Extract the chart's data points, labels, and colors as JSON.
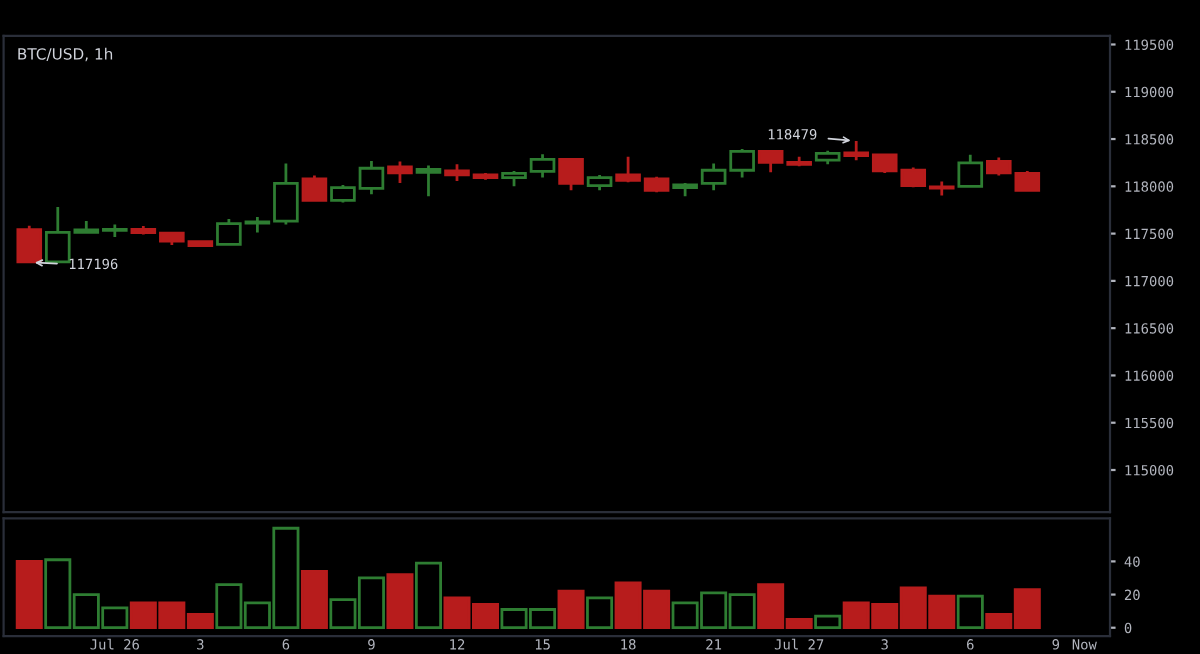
{
  "chart_data": [
    {
      "type": "candlestick",
      "title": "BTC/USD, 1h",
      "categories": [
        null,
        null,
        null,
        null,
        null,
        null,
        null,
        null,
        null,
        null,
        null,
        null,
        null,
        null,
        null,
        null,
        null,
        null,
        null,
        null,
        null,
        null,
        null,
        null,
        null,
        null,
        null,
        null,
        null,
        null,
        null,
        null,
        null,
        null,
        null,
        null,
        null,
        null
      ],
      "ohlc": [
        [
          117542,
          117584,
          117196,
          117200
        ],
        [
          117200,
          117782,
          117200,
          117512
        ],
        [
          117512,
          117633,
          117512,
          117540
        ],
        [
          117535,
          117597,
          117464,
          117545
        ],
        [
          117545,
          117580,
          117490,
          117510
        ],
        [
          117506,
          117506,
          117379,
          117421
        ],
        [
          117415,
          117420,
          117370,
          117372
        ],
        [
          117385,
          117655,
          117380,
          117606
        ],
        [
          117610,
          117676,
          117512,
          117625
        ],
        [
          117633,
          118242,
          117597,
          118030
        ],
        [
          118078,
          118114,
          117852,
          117852
        ],
        [
          117852,
          118015,
          117830,
          117987
        ],
        [
          117979,
          118269,
          117915,
          118191
        ],
        [
          118206,
          118263,
          118036,
          118142
        ],
        [
          118148,
          118220,
          117894,
          118178
        ],
        [
          118163,
          118233,
          118057,
          118121
        ],
        [
          118121,
          118140,
          118070,
          118093
        ],
        [
          118093,
          118163,
          118000,
          118136
        ],
        [
          118157,
          118339,
          118093,
          118284
        ],
        [
          118284,
          118290,
          117958,
          118030
        ],
        [
          118008,
          118121,
          117958,
          118093
        ],
        [
          118121,
          118312,
          118042,
          118064
        ],
        [
          118078,
          118100,
          117937,
          117958
        ],
        [
          117987,
          118036,
          117894,
          118015
        ],
        [
          118030,
          118242,
          117958,
          118170
        ],
        [
          118170,
          118396,
          118093,
          118369
        ],
        [
          118369,
          118369,
          118148,
          118254
        ],
        [
          118254,
          118312,
          118212,
          118233
        ],
        [
          118276,
          118375,
          118233,
          118348
        ],
        [
          118354,
          118479,
          118276,
          118326
        ],
        [
          118333,
          118333,
          118142,
          118163
        ],
        [
          118170,
          118199,
          117990,
          118008
        ],
        [
          117994,
          118050,
          117902,
          117980
        ],
        [
          118000,
          118333,
          118000,
          118248
        ],
        [
          118263,
          118304,
          118114,
          118142
        ],
        [
          118136,
          118163,
          117958,
          117958
        ],
        null,
        null
      ],
      "colors": [
        "#b71c1c",
        "#2e7d32",
        "#2e7d32",
        "#2e7d32",
        "#b71c1c",
        "#b71c1c",
        "#b71c1c",
        "#2e7d32",
        "#2e7d32",
        "#2e7d32",
        "#b71c1c",
        "#2e7d32",
        "#2e7d32",
        "#b71c1c",
        "#2e7d32",
        "#b71c1c",
        "#b71c1c",
        "#2e7d32",
        "#2e7d32",
        "#b71c1c",
        "#2e7d32",
        "#b71c1c",
        "#b71c1c",
        "#2e7d32",
        "#2e7d32",
        "#2e7d32",
        "#b71c1c",
        "#b71c1c",
        "#2e7d32",
        "#b71c1c",
        "#b71c1c",
        "#b71c1c",
        "#b71c1c",
        "#2e7d32",
        "#b71c1c",
        "#b71c1c",
        null,
        null
      ],
      "ylim": [
        114555,
        119590
      ],
      "yticks": [
        115000,
        115500,
        116000,
        116500,
        117000,
        117500,
        118000,
        118500,
        119000,
        119500
      ],
      "tick_labels": "y",
      "grid": false,
      "annotations": [
        "117196",
        "118479"
      ]
    },
    {
      "type": "bar",
      "categories": [
        null,
        null,
        null,
        "Jul 26",
        null,
        null,
        "3",
        null,
        null,
        "6",
        null,
        null,
        "9",
        null,
        null,
        "12",
        null,
        null,
        "15",
        null,
        null,
        "18",
        null,
        null,
        "21",
        null,
        null,
        "Jul 27",
        null,
        null,
        "3",
        null,
        null,
        "6",
        null,
        null,
        "9",
        "Now"
      ],
      "values": [
        40,
        41,
        20,
        12,
        15,
        15,
        8,
        26,
        15,
        60,
        34,
        17,
        30,
        32,
        39,
        18,
        14,
        11,
        11,
        22,
        18,
        27,
        22,
        15,
        21,
        20,
        26,
        5,
        7,
        15,
        14,
        24,
        19,
        19,
        8,
        23,
        null,
        null
      ],
      "colors": [
        "#b71c1c",
        "#2e7d32",
        "#2e7d32",
        "#2e7d32",
        "#b71c1c",
        "#b71c1c",
        "#b71c1c",
        "#2e7d32",
        "#2e7d32",
        "#2e7d32",
        "#b71c1c",
        "#2e7d32",
        "#2e7d32",
        "#b71c1c",
        "#2e7d32",
        "#b71c1c",
        "#b71c1c",
        "#2e7d32",
        "#2e7d32",
        "#b71c1c",
        "#2e7d32",
        "#b71c1c",
        "#b71c1c",
        "#2e7d32",
        "#2e7d32",
        "#2e7d32",
        "#b71c1c",
        "#b71c1c",
        "#2e7d32",
        "#b71c1c",
        "#b71c1c",
        "#b71c1c",
        "#b71c1c",
        "#2e7d32",
        "#b71c1c",
        "#b71c1c",
        null,
        null
      ],
      "ylim": [
        -5,
        66
      ],
      "yticks": [
        0,
        20,
        40
      ],
      "grid": false
    }
  ]
}
